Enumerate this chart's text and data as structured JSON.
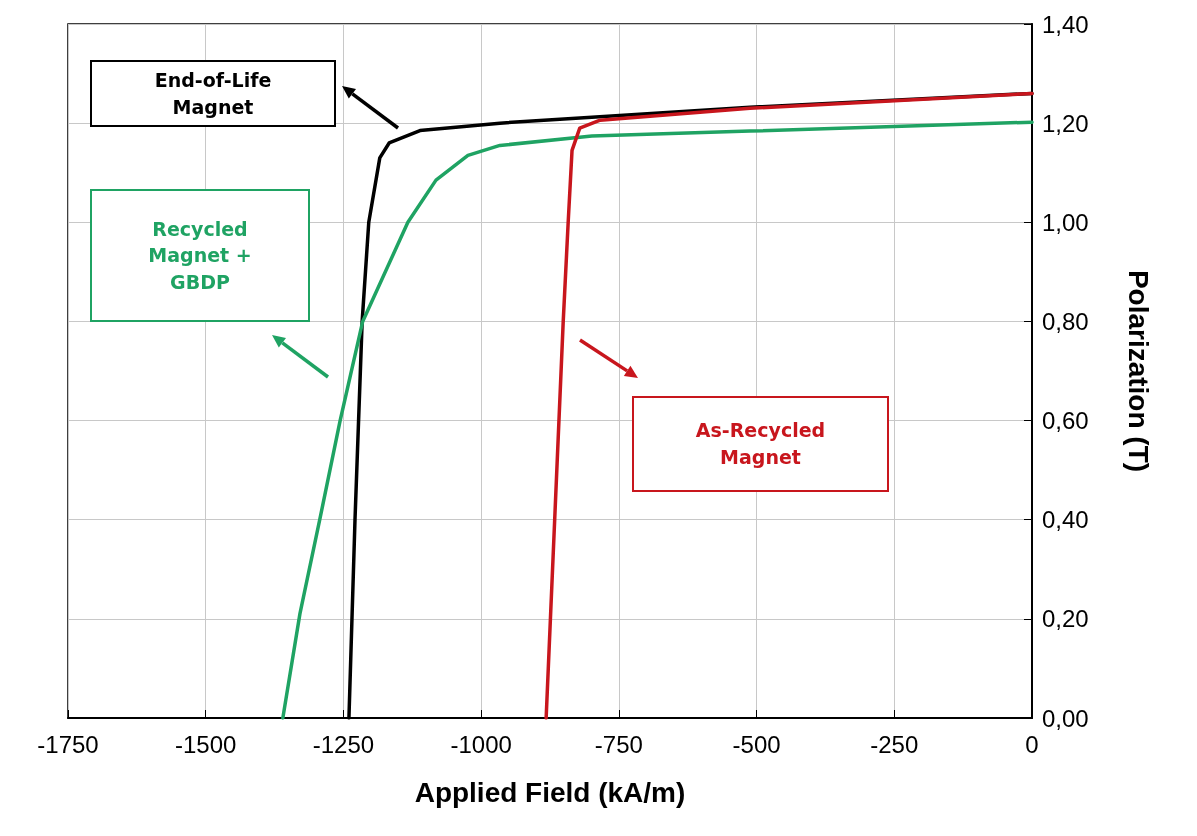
{
  "chart_data": {
    "type": "line",
    "xlabel": "Applied Field (kA/m)",
    "ylabel": "Polarization (T)",
    "xlim": [
      -1750,
      0
    ],
    "xticks": [
      -1750,
      -1500,
      -1250,
      -1000,
      -750,
      -500,
      -250,
      0
    ],
    "ylim": [
      0,
      1.4
    ],
    "yticks": [
      {
        "value": 0,
        "label": "0,00"
      },
      {
        "value": 0.2,
        "label": "0,20"
      },
      {
        "value": 0.4,
        "label": "0,40"
      },
      {
        "value": 0.6,
        "label": "0,60"
      },
      {
        "value": 0.8,
        "label": "0,80"
      },
      {
        "value": 1.0,
        "label": "1,00"
      },
      {
        "value": 1.2,
        "label": "1,20"
      },
      {
        "value": 1.4,
        "label": "1,40"
      }
    ],
    "grid": true,
    "marker": "none",
    "line_style": "solid",
    "annotations": [
      "End-of-Life Magnet",
      "Recycled Magnet + GBDP",
      "As-Recycled Magnet"
    ],
    "series": [
      {
        "color": "#000000",
        "x": [
          -1240,
          -1229,
          -1216,
          -1204,
          -1184,
          -1167,
          -1111,
          -966,
          -799,
          -512,
          0
        ],
        "values": [
          0,
          0.4,
          0.8,
          1.0,
          1.13,
          1.16,
          1.185,
          1.2,
          1.212,
          1.232,
          1.26
        ]
      },
      {
        "color": "#1fa363",
        "x": [
          -1360,
          -1329,
          -1293,
          -1256,
          -1215,
          -1133,
          -1082,
          -1024,
          -966,
          -799,
          -512,
          0
        ],
        "values": [
          0,
          0.21,
          0.4,
          0.6,
          0.8,
          1.0,
          1.085,
          1.135,
          1.155,
          1.174,
          1.184,
          1.202
        ]
      },
      {
        "color": "#c8161d",
        "x": [
          -882,
          -851,
          -842,
          -835,
          -821,
          -784,
          -512,
          0
        ],
        "values": [
          0,
          0.8,
          1.0,
          1.145,
          1.19,
          1.206,
          1.23,
          1.26
        ]
      }
    ]
  }
}
